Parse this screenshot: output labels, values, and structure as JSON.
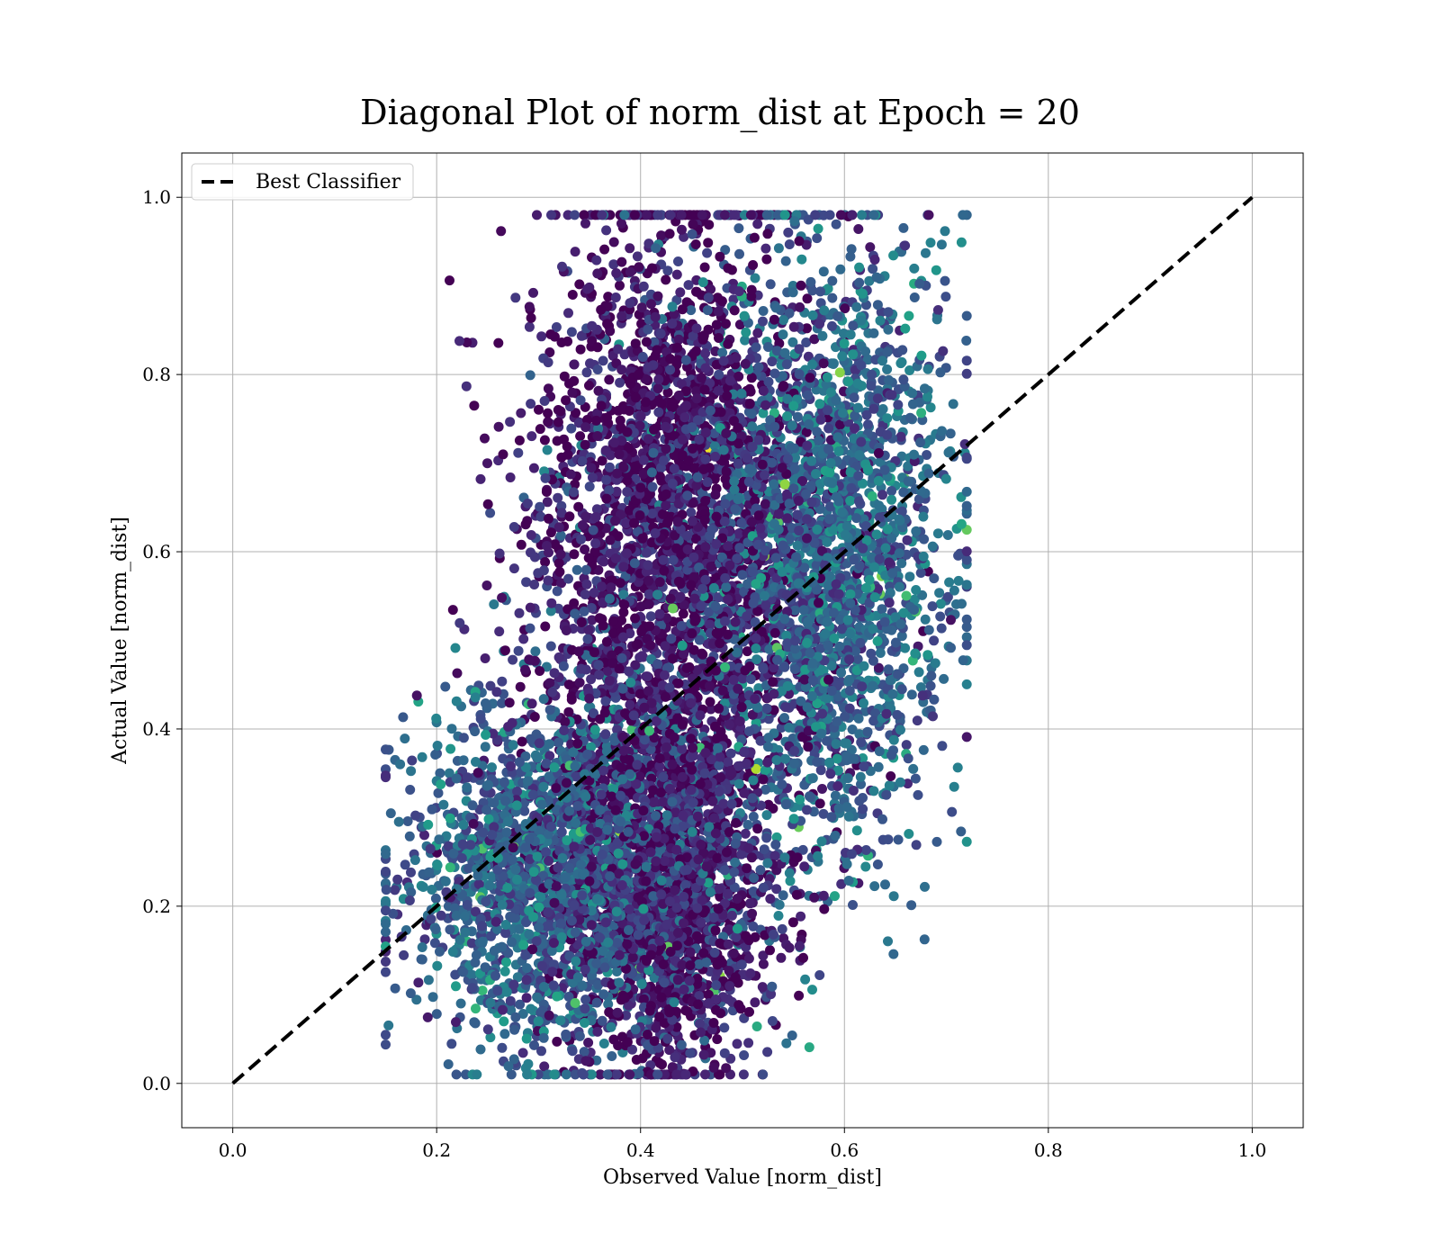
{
  "chart_data": {
    "type": "scatter",
    "title": "Diagonal Plot of norm_dist at Epoch = 20",
    "xlabel": "Observed Value [norm_dist]",
    "ylabel": "Actual Value [norm_dist]",
    "xlim": [
      -0.05,
      1.05
    ],
    "ylim": [
      -0.05,
      1.05
    ],
    "xticks": [
      "0.0",
      "0.2",
      "0.4",
      "0.6",
      "0.8",
      "1.0"
    ],
    "yticks": [
      "0.0",
      "0.2",
      "0.4",
      "0.6",
      "0.8",
      "1.0"
    ],
    "grid": true,
    "colormap": "viridis",
    "legend": {
      "placement": "top-left",
      "entries": [
        "Best Classifier"
      ]
    },
    "series": [
      {
        "name": "Best Classifier",
        "kind": "line",
        "style": "dashed",
        "color": "#000000",
        "x": [
          0.0,
          1.0
        ],
        "y": [
          0.0,
          1.0
        ]
      }
    ],
    "scatter_cloud": {
      "description_of_distribution": "dense point cloud",
      "x_range": [
        0.15,
        0.72
      ],
      "y_range": [
        0.01,
        0.98
      ],
      "clusters": [
        {
          "x_center": 0.43,
          "y_center": 0.62,
          "x_spread": 0.07,
          "y_spread": 0.18,
          "weight": 0.32,
          "color_level": 0.05
        },
        {
          "x_center": 0.58,
          "y_center": 0.6,
          "x_spread": 0.06,
          "y_spread": 0.17,
          "weight": 0.26,
          "color_level": 0.32
        },
        {
          "x_center": 0.31,
          "y_center": 0.24,
          "x_spread": 0.07,
          "y_spread": 0.1,
          "weight": 0.22,
          "color_level": 0.3
        },
        {
          "x_center": 0.43,
          "y_center": 0.22,
          "x_spread": 0.05,
          "y_spread": 0.1,
          "weight": 0.2,
          "color_level": 0.08
        }
      ],
      "point_count": 9000
    }
  }
}
